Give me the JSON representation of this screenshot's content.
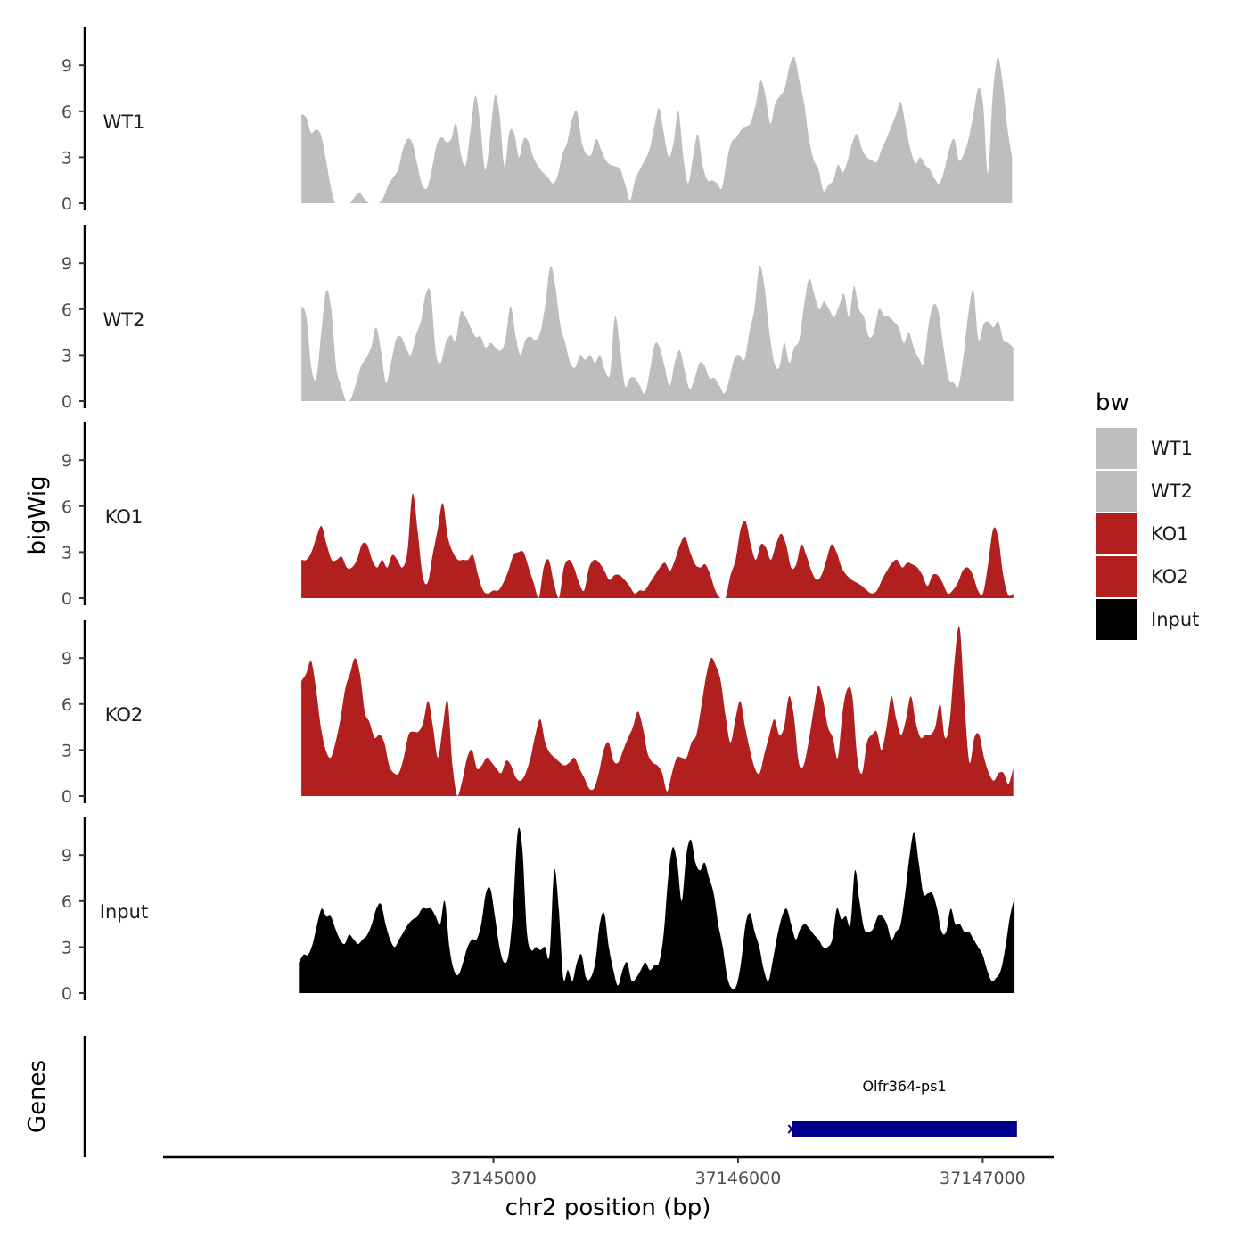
{
  "chart_data": {
    "type": "area",
    "chromosome": "chr2",
    "xlabel": "chr2 position (bp)",
    "ylabel": "bigWig",
    "genes_label": "Genes",
    "xlim": [
      37143650,
      37147290
    ],
    "x_ticks": [
      37145000,
      37146000,
      37147000
    ],
    "x_tick_labels": [
      "37145000",
      "37146000",
      "37147000"
    ],
    "ylim": [
      0,
      11.5
    ],
    "y_ticks": [
      0,
      3,
      6,
      9
    ],
    "y_tick_labels": [
      "0",
      "3",
      "6",
      "9"
    ],
    "legend": {
      "title": "bw",
      "entries": [
        {
          "label": "WT1",
          "color": "#bebebe"
        },
        {
          "label": "WT2",
          "color": "#bebebe"
        },
        {
          "label": "KO1",
          "color": "#b21f1f"
        },
        {
          "label": "KO2",
          "color": "#b21f1f"
        },
        {
          "label": "Input",
          "color": "#000000"
        }
      ]
    },
    "tracks": [
      {
        "name": "WT1",
        "color": "#bebebe",
        "x_start": 37144215,
        "x_end": 37147120,
        "values": [
          5.8,
          5.6,
          4.6,
          4.8,
          4.5,
          3.0,
          1.2,
          0.0,
          0.0,
          0.0,
          0.0,
          0.4,
          0.7,
          0.3,
          0.0,
          0.0,
          0.0,
          0.4,
          1.2,
          1.7,
          2.2,
          3.5,
          4.2,
          3.9,
          2.5,
          1.2,
          1.0,
          2.2,
          3.8,
          4.3,
          4.0,
          4.2,
          5.2,
          3.2,
          2.5,
          4.8,
          7.0,
          5.2,
          2.2,
          4.2,
          7.0,
          5.8,
          2.4,
          4.6,
          4.6,
          3.0,
          4.2,
          4.0,
          3.0,
          2.4,
          2.0,
          1.7,
          1.3,
          1.8,
          3.2,
          4.0,
          5.5,
          6.0,
          4.0,
          3.2,
          3.2,
          4.2,
          3.5,
          2.8,
          2.5,
          2.4,
          2.2,
          1.2,
          0.2,
          1.5,
          2.2,
          2.8,
          3.5,
          5.0,
          6.2,
          4.5,
          3.0,
          4.0,
          6.0,
          3.0,
          1.3,
          3.0,
          4.5,
          2.5,
          1.5,
          1.5,
          1.3,
          1.0,
          2.8,
          4.0,
          4.3,
          4.8,
          5.0,
          5.3,
          6.5,
          8.0,
          7.0,
          5.2,
          6.5,
          7.0,
          7.5,
          9.0,
          9.5,
          8.0,
          6.5,
          4.2,
          2.8,
          2.2,
          0.8,
          1.2,
          1.5,
          2.5,
          2.0,
          2.8,
          4.0,
          4.5,
          3.5,
          3.0,
          2.8,
          2.7,
          3.5,
          4.2,
          5.0,
          5.8,
          6.6,
          5.0,
          3.5,
          2.6,
          3.0,
          2.5,
          2.2,
          1.6,
          1.3,
          2.2,
          3.5,
          4.2,
          2.8,
          3.2,
          4.2,
          5.8,
          7.5,
          6.5,
          2.0,
          7.0,
          9.5,
          8.0,
          5.0,
          3.0
        ]
      },
      {
        "name": "WT2",
        "color": "#bebebe",
        "x_start": 37144215,
        "x_end": 37147125,
        "values": [
          6.2,
          5.5,
          2.2,
          1.5,
          4.5,
          7.2,
          6.0,
          2.2,
          1.0,
          0.0,
          0.2,
          1.2,
          2.3,
          2.8,
          3.5,
          4.8,
          3.3,
          1.2,
          2.5,
          4.0,
          4.2,
          3.5,
          3.0,
          4.3,
          5.2,
          7.0,
          7.0,
          3.2,
          2.5,
          3.8,
          4.3,
          4.0,
          5.8,
          5.5,
          4.8,
          4.2,
          4.2,
          3.5,
          3.8,
          3.5,
          3.3,
          4.0,
          6.2,
          4.3,
          3.0,
          4.0,
          4.2,
          4.0,
          4.5,
          6.3,
          8.8,
          7.5,
          5.0,
          3.8,
          2.5,
          2.2,
          3.0,
          2.7,
          3.0,
          2.5,
          3.0,
          2.0,
          1.8,
          5.5,
          3.5,
          1.0,
          1.5,
          1.5,
          1.0,
          0.5,
          2.0,
          3.7,
          3.5,
          2.2,
          1.0,
          2.5,
          3.3,
          2.0,
          0.8,
          1.5,
          2.5,
          2.3,
          1.5,
          1.5,
          1.0,
          0.5,
          1.5,
          2.8,
          3.0,
          2.7,
          4.5,
          6.0,
          8.8,
          7.5,
          4.5,
          2.5,
          2.2,
          3.8,
          2.5,
          3.5,
          4.0,
          6.3,
          8.0,
          7.0,
          6.0,
          6.5,
          6.0,
          5.5,
          6.2,
          7.0,
          5.5,
          7.5,
          6.0,
          5.5,
          4.2,
          4.5,
          6.0,
          5.6,
          5.5,
          5.2,
          4.8,
          3.8,
          4.5,
          3.5,
          2.8,
          2.5,
          5.0,
          6.3,
          5.8,
          3.5,
          1.5,
          1.2,
          1.0,
          3.0,
          5.8,
          7.2,
          4.0,
          5.0,
          5.2,
          4.8,
          5.2,
          4.0,
          3.8,
          3.5
        ]
      },
      {
        "name": "KO1",
        "color": "#b21f1f",
        "x_start": 37144215,
        "x_end": 37147125,
        "values": [
          2.5,
          2.5,
          3.0,
          4.0,
          4.7,
          3.5,
          2.5,
          2.5,
          2.7,
          2.0,
          2.0,
          2.5,
          3.5,
          3.5,
          2.5,
          2.0,
          2.5,
          2.0,
          2.8,
          2.5,
          2.0,
          3.0,
          6.8,
          4.5,
          1.5,
          1.0,
          2.8,
          4.5,
          6.2,
          4.0,
          3.0,
          2.5,
          2.5,
          2.5,
          2.8,
          1.5,
          0.5,
          0.3,
          0.5,
          0.5,
          1.0,
          1.8,
          2.8,
          3.0,
          3.0,
          2.0,
          1.0,
          0.0,
          2.0,
          2.5,
          1.0,
          0.0,
          2.0,
          2.5,
          2.0,
          1.0,
          0.5,
          2.0,
          2.5,
          2.3,
          1.8,
          1.2,
          1.5,
          1.5,
          1.2,
          0.8,
          0.3,
          0.5,
          0.5,
          1.0,
          1.5,
          2.0,
          2.3,
          1.8,
          2.5,
          3.5,
          4.0,
          3.0,
          2.2,
          2.0,
          2.2,
          1.5,
          0.5,
          0.0,
          0.0,
          1.5,
          2.5,
          4.5,
          5.0,
          3.5,
          2.5,
          3.5,
          3.3,
          2.5,
          3.5,
          4.2,
          3.5,
          2.0,
          2.2,
          3.5,
          2.8,
          1.8,
          1.2,
          1.5,
          2.5,
          3.5,
          3.0,
          2.0,
          1.5,
          1.2,
          1.0,
          0.8,
          0.5,
          0.3,
          0.5,
          1.2,
          1.8,
          2.3,
          2.5,
          2.0,
          2.3,
          2.2,
          2.0,
          1.5,
          0.8,
          1.5,
          1.5,
          1.0,
          0.3,
          0.5,
          1.0,
          1.8,
          2.0,
          1.5,
          0.5,
          0.3,
          2.2,
          4.5,
          4.0,
          1.5,
          0.2,
          0.3
        ]
      },
      {
        "name": "KO2",
        "color": "#b21f1f",
        "x_start": 37144215,
        "x_end": 37147125,
        "values": [
          7.5,
          8.0,
          8.8,
          7.0,
          4.5,
          3.0,
          2.5,
          3.5,
          5.0,
          7.0,
          8.0,
          9.0,
          8.0,
          5.5,
          4.8,
          3.8,
          4.0,
          3.5,
          2.0,
          1.5,
          1.5,
          2.5,
          4.0,
          4.2,
          4.2,
          4.8,
          6.2,
          4.5,
          2.5,
          4.5,
          6.2,
          2.0,
          0.0,
          1.0,
          2.5,
          3.0,
          1.8,
          2.0,
          2.5,
          2.2,
          1.8,
          1.5,
          2.3,
          2.0,
          1.2,
          1.0,
          1.5,
          2.5,
          4.0,
          5.0,
          3.5,
          2.8,
          2.5,
          2.2,
          2.0,
          2.2,
          2.5,
          1.8,
          1.2,
          0.5,
          0.5,
          1.5,
          3.0,
          3.5,
          2.3,
          2.2,
          3.0,
          3.8,
          4.5,
          5.5,
          4.5,
          2.8,
          2.2,
          2.0,
          1.5,
          0.3,
          1.5,
          2.5,
          2.5,
          2.5,
          3.5,
          4.0,
          5.8,
          7.8,
          9.0,
          8.5,
          7.5,
          5.2,
          3.5,
          5.0,
          6.2,
          4.5,
          3.0,
          1.8,
          1.5,
          2.8,
          4.0,
          5.0,
          4.0,
          4.5,
          6.5,
          5.2,
          2.2,
          2.0,
          3.5,
          5.5,
          7.2,
          6.2,
          4.5,
          3.8,
          2.5,
          5.5,
          7.0,
          6.5,
          2.5,
          1.5,
          3.5,
          4.0,
          4.2,
          3.0,
          4.5,
          6.5,
          5.0,
          4.0,
          5.0,
          6.5,
          4.8,
          3.8,
          4.0,
          4.0,
          4.5,
          6.0,
          3.8,
          5.0,
          9.0,
          11.0,
          6.0,
          2.2,
          3.8,
          4.0,
          2.5,
          1.5,
          1.0,
          1.5,
          1.5,
          0.8,
          1.8
        ]
      },
      {
        "name": "Input",
        "color": "#000000",
        "x_start": 37144205,
        "x_end": 37147130,
        "values": [
          2.0,
          2.5,
          2.5,
          3.2,
          4.5,
          5.5,
          5.0,
          5.0,
          4.2,
          3.5,
          3.2,
          3.8,
          3.5,
          3.2,
          3.5,
          3.8,
          4.5,
          5.5,
          5.8,
          4.5,
          3.5,
          3.0,
          3.5,
          4.0,
          4.5,
          4.8,
          5.0,
          5.5,
          5.5,
          5.5,
          5.0,
          4.5,
          6.0,
          3.0,
          1.5,
          1.2,
          2.0,
          3.0,
          3.5,
          3.5,
          4.5,
          6.5,
          6.8,
          5.0,
          3.0,
          2.0,
          2.5,
          5.5,
          10.5,
          9.5,
          4.0,
          2.8,
          3.0,
          2.8,
          3.0,
          2.5,
          8.0,
          5.5,
          1.0,
          1.5,
          0.8,
          2.0,
          2.5,
          1.0,
          1.0,
          2.0,
          4.5,
          5.2,
          3.0,
          1.5,
          0.5,
          1.5,
          2.0,
          0.8,
          1.0,
          1.5,
          2.0,
          1.5,
          1.8,
          2.0,
          3.8,
          7.5,
          9.5,
          8.5,
          6.0,
          9.0,
          10.0,
          8.5,
          8.0,
          8.5,
          7.5,
          6.5,
          4.5,
          3.0,
          1.0,
          0.3,
          0.5,
          2.0,
          4.5,
          5.2,
          4.0,
          3.0,
          1.5,
          0.8,
          2.2,
          3.8,
          5.0,
          5.5,
          4.5,
          3.5,
          4.2,
          4.5,
          4.2,
          3.8,
          3.5,
          3.0,
          3.0,
          3.5,
          5.5,
          4.8,
          5.0,
          4.5,
          8.0,
          6.0,
          4.2,
          4.0,
          4.2,
          5.0,
          5.0,
          4.5,
          3.5,
          4.0,
          4.5,
          6.5,
          9.0,
          10.5,
          8.5,
          6.5,
          6.5,
          6.5,
          5.5,
          4.0,
          4.0,
          5.5,
          4.5,
          4.5,
          4.0,
          4.0,
          3.5,
          3.0,
          2.5,
          1.5,
          0.8,
          1.0,
          1.5,
          3.0,
          5.0,
          6.2
        ]
      }
    ],
    "genes": [
      {
        "name": "Olfr364-ps1",
        "start": 37146220,
        "end": 37147140,
        "color": "#00008b"
      }
    ]
  }
}
